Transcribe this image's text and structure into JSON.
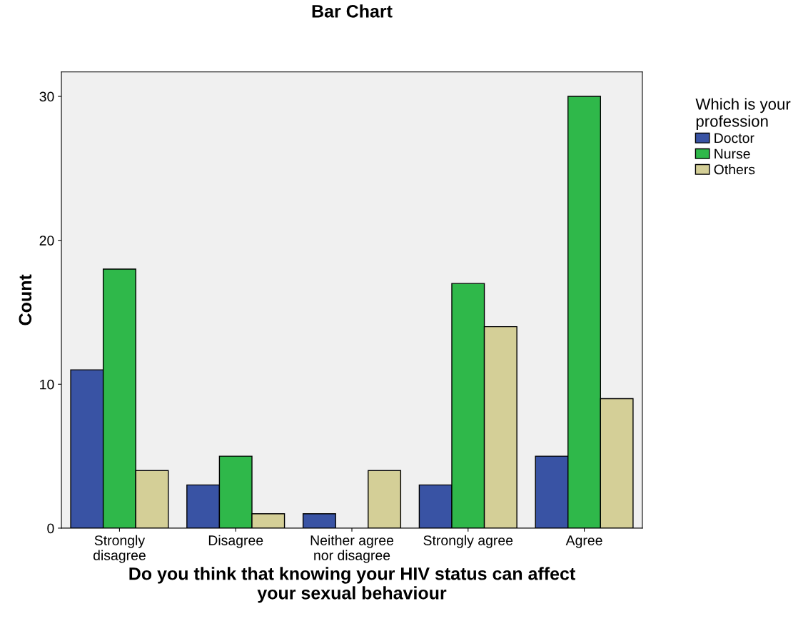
{
  "chart_data": {
    "type": "bar",
    "title": "Bar Chart",
    "xlabel": "Do you think that knowing your HIV status can affect\nyour sexual behaviour",
    "ylabel": "Count",
    "legend_title": "Which is your\nprofession",
    "categories": [
      "Strongly\ndisagree",
      "Disagree",
      "Neither agree\nnor disagree",
      "Strongly agree",
      "Agree"
    ],
    "series": [
      {
        "name": "Doctor",
        "color": "#3953a4",
        "values": [
          11,
          3,
          1,
          3,
          5
        ]
      },
      {
        "name": "Nurse",
        "color": "#2fb84a",
        "values": [
          18,
          5,
          null,
          17,
          30
        ]
      },
      {
        "name": "Others",
        "color": "#d4cf97",
        "values": [
          4,
          1,
          4,
          14,
          9
        ]
      }
    ],
    "ylim": [
      0,
      31.7
    ],
    "yticks": [
      0,
      10,
      20,
      30
    ],
    "grid": false,
    "legend": "top right"
  }
}
